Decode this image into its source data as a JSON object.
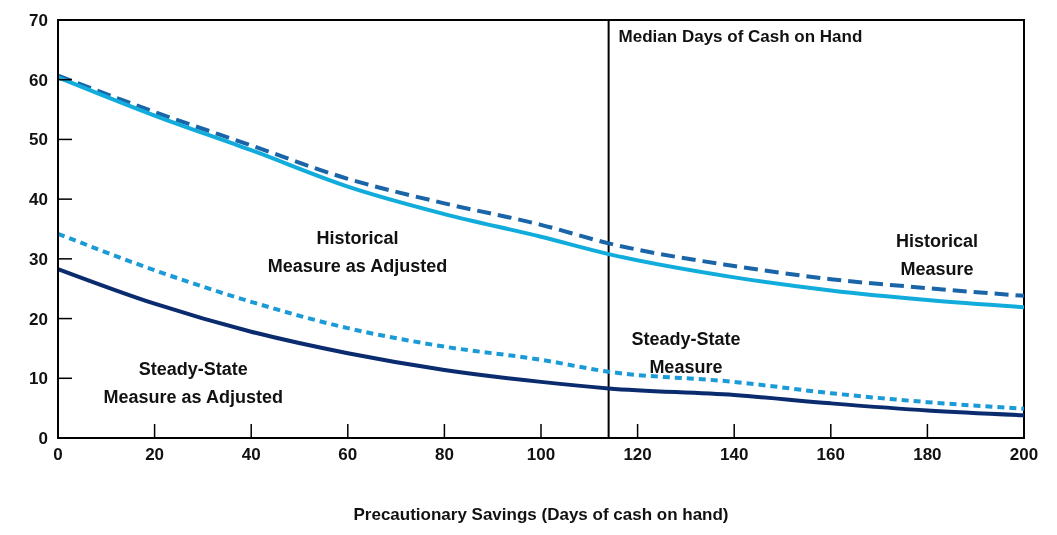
{
  "chart_data": {
    "type": "line",
    "xlabel": "Precautionary Savings (Days of cash on hand)",
    "xlim": [
      0,
      200
    ],
    "xticks": [
      0,
      20,
      40,
      60,
      80,
      100,
      120,
      140,
      160,
      180,
      200
    ],
    "ylim": [
      0,
      70
    ],
    "yticks": [
      0,
      10,
      20,
      30,
      40,
      50,
      60,
      70
    ],
    "grid": false,
    "legend": false,
    "marker": "none",
    "series": [
      {
        "name": "Historical Measure",
        "color": "#1a64a8",
        "line_style": "dashed",
        "x": [
          0,
          20,
          40,
          60,
          80,
          100,
          114,
          140,
          160,
          180,
          200
        ],
        "values": [
          60.7,
          54.6,
          49.0,
          43.4,
          39.3,
          35.7,
          32.6,
          28.8,
          26.6,
          25.1,
          23.8
        ]
      },
      {
        "name": "Historical Measure as Adjusted",
        "color": "#12acdc",
        "line_style": "solid",
        "x": [
          0,
          20,
          40,
          60,
          80,
          100,
          114,
          140,
          160,
          180,
          200
        ],
        "values": [
          60.4,
          54.0,
          48.2,
          42.1,
          37.5,
          33.7,
          30.8,
          26.9,
          24.7,
          23.1,
          21.9
        ]
      },
      {
        "name": "Steady-State Measure",
        "color": "#1a9ad6",
        "line_style": "dotted",
        "x": [
          0,
          20,
          40,
          60,
          80,
          100,
          114,
          140,
          160,
          180,
          200
        ],
        "values": [
          34.2,
          28.1,
          22.8,
          18.4,
          15.3,
          13.1,
          11.1,
          9.4,
          7.5,
          6.0,
          4.9
        ]
      },
      {
        "name": "Steady-State Measure as Adjusted",
        "color": "#0a2c6e",
        "line_style": "solid",
        "x": [
          0,
          20,
          40,
          60,
          80,
          100,
          114,
          140,
          160,
          180,
          200
        ],
        "values": [
          28.3,
          22.5,
          17.8,
          14.2,
          11.4,
          9.4,
          8.3,
          7.2,
          5.8,
          4.6,
          3.8
        ]
      }
    ],
    "ref_lines": [
      {
        "axis": "x",
        "value": 114,
        "label": "Median Days of Cash on Hand",
        "color": "#000000"
      }
    ]
  }
}
